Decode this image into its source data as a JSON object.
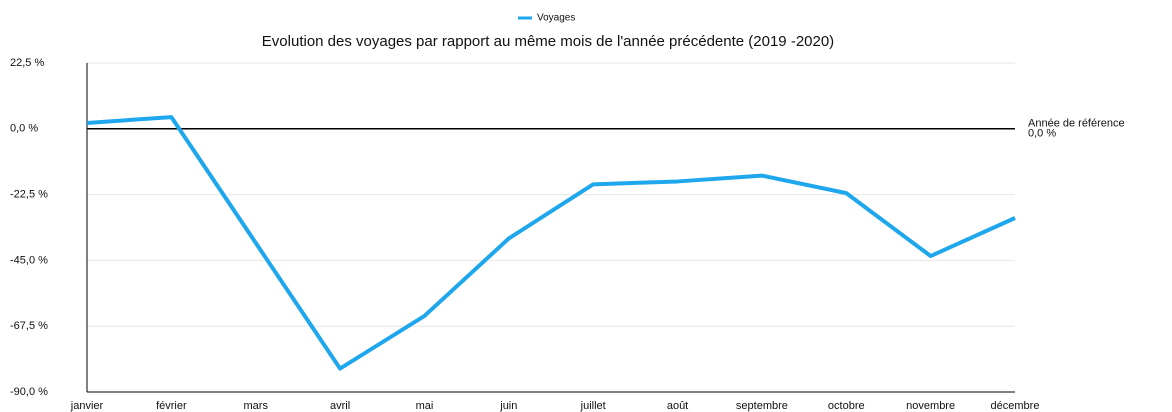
{
  "chart_data": {
    "type": "line",
    "title": "Evolution des voyages par rapport au même mois de l'année précédente (2019 -2020)",
    "categories": [
      "janvier",
      "février",
      "mars",
      "avril",
      "mai",
      "juin",
      "juillet",
      "août",
      "septembre",
      "octobre",
      "novembre",
      "décembre"
    ],
    "series": [
      {
        "name": "Voyages",
        "color": "#1ea7ec",
        "values": [
          2,
          4,
          -39,
          -82,
          -64,
          -37.5,
          -19,
          -18,
          -16,
          -22,
          -43.5,
          -30.5
        ]
      }
    ],
    "ylim": [
      -90,
      22.5
    ],
    "yticks": [
      {
        "value": -90,
        "label": "-90,0 %"
      },
      {
        "value": -67.5,
        "label": "-67,5 %"
      },
      {
        "value": -45,
        "label": "-45,0 %"
      },
      {
        "value": -22.5,
        "label": "-22,5 %"
      },
      {
        "value": 0,
        "label": "0,0 %"
      },
      {
        "value": 22.5,
        "label": "22,5 %"
      }
    ],
    "grid": true,
    "legend": "top",
    "reference_line": {
      "value": 0,
      "color": "#000000",
      "label": [
        "Année de référence",
        "0,0 %"
      ]
    }
  }
}
